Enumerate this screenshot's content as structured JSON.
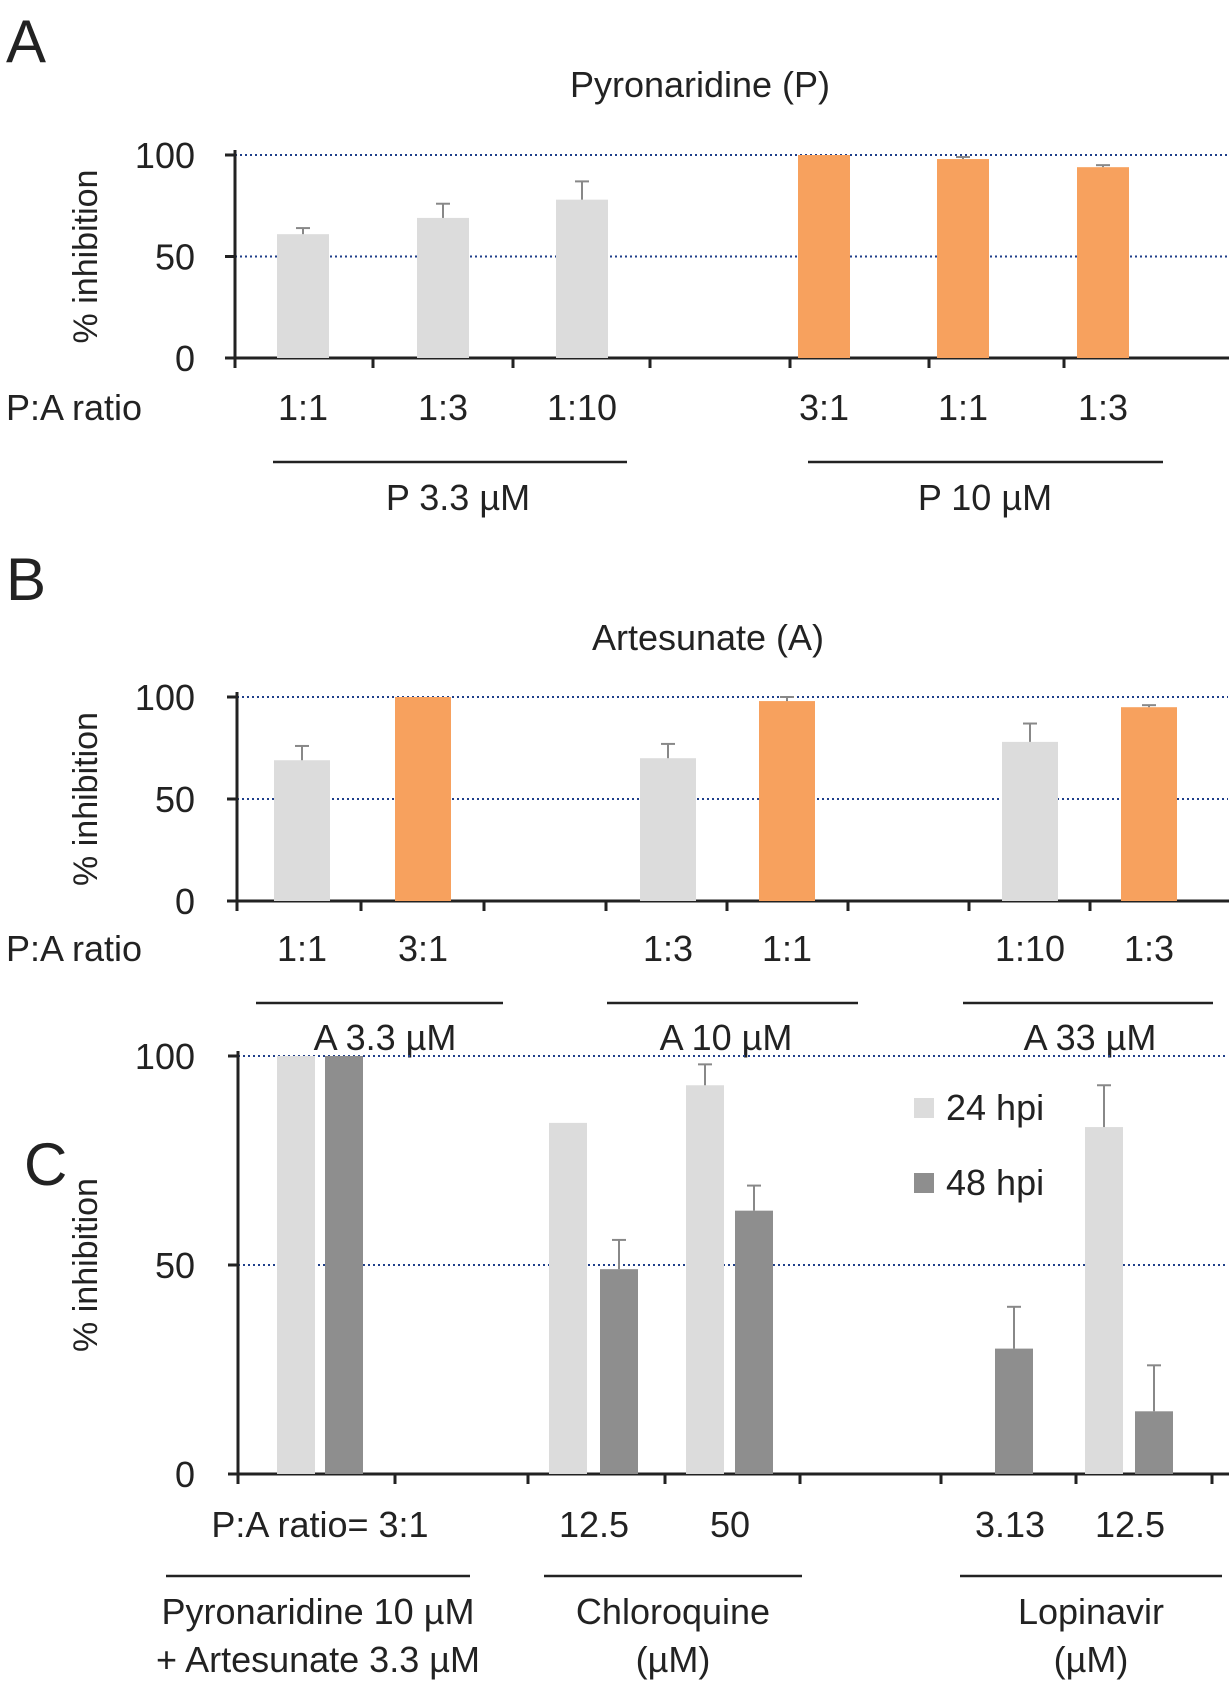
{
  "colors": {
    "light_gray": "#dcdcdc",
    "orange": "#f7a15e",
    "dark_gray": "#8e8e8e"
  },
  "chart_data": [
    {
      "type": "bar",
      "panel": "A",
      "title": "Pyronaridine (P)",
      "ylabel": "% inhibition",
      "ylim": [
        0,
        100
      ],
      "yticks": [
        "0",
        "50",
        "100"
      ],
      "row_label": "P:A ratio",
      "categories": [
        "1:1",
        "1:3",
        "1:10",
        "3:1",
        "1:1",
        "1:3"
      ],
      "values": [
        61,
        69,
        78,
        100,
        98,
        94
      ],
      "errors": [
        3,
        7,
        9,
        0,
        1,
        1
      ],
      "bar_colors": [
        "light_gray",
        "light_gray",
        "light_gray",
        "orange",
        "orange",
        "orange"
      ],
      "groups": [
        "P 3.3 µM",
        "P 10 µM"
      ]
    },
    {
      "type": "bar",
      "panel": "B",
      "title": "Artesunate (A)",
      "ylabel": "% inhibition",
      "ylim": [
        0,
        100
      ],
      "yticks": [
        "0",
        "50",
        "100"
      ],
      "row_label": "P:A ratio",
      "categories": [
        "1:1",
        "3:1",
        "1:3",
        "1:1",
        "1:10",
        "1:3"
      ],
      "values": [
        69,
        100,
        70,
        98,
        78,
        95
      ],
      "errors": [
        7,
        0,
        7,
        2,
        9,
        1
      ],
      "bar_colors": [
        "light_gray",
        "orange",
        "light_gray",
        "orange",
        "light_gray",
        "orange"
      ],
      "groups": [
        "A 3.3 µM",
        "A 10 µM",
        "A 33 µM"
      ]
    },
    {
      "type": "bar",
      "panel": "C",
      "ylabel": "% inhibition",
      "ylim": [
        0,
        100
      ],
      "yticks": [
        "0",
        "50",
        "100"
      ],
      "series": [
        {
          "name": "24 hpi",
          "color": "light_gray",
          "values": [
            100,
            84,
            93,
            0,
            83
          ],
          "errors": [
            0,
            0,
            5,
            0,
            10
          ]
        },
        {
          "name": "48 hpi",
          "color": "dark_gray",
          "values": [
            100,
            49,
            63,
            30,
            15
          ],
          "errors": [
            0,
            7,
            6,
            10,
            11
          ]
        }
      ],
      "categories": [
        "P:A ratio= 3:1",
        "12.5",
        "50",
        "3.13",
        "12.5"
      ],
      "groups": [
        [
          "Pyronaridine 10 µM",
          "+ Artesunate 3.3 µM"
        ],
        [
          "Chloroquine",
          "(µM)"
        ],
        [
          "Lopinavir",
          "(µM)"
        ]
      ]
    }
  ]
}
